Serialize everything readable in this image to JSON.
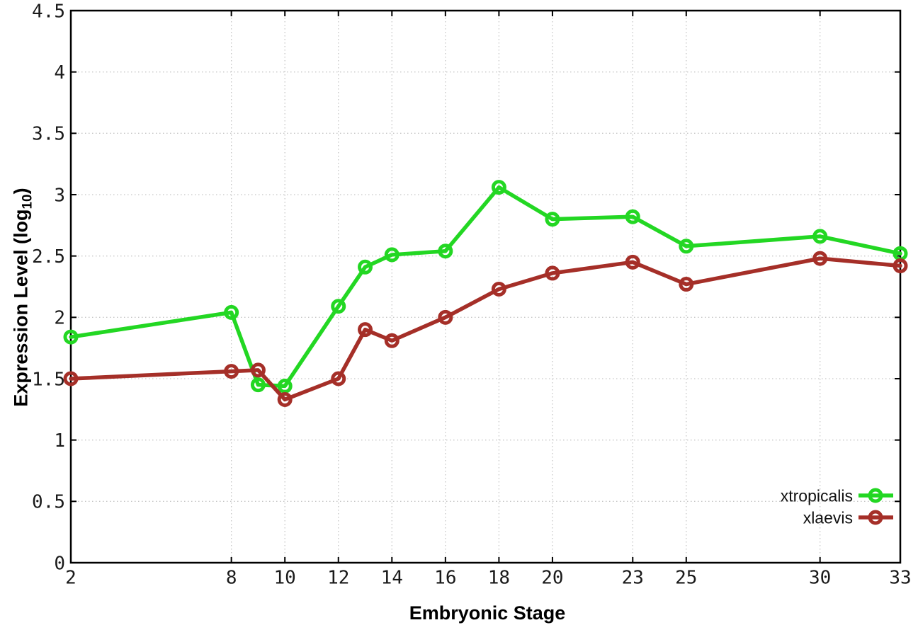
{
  "figure": {
    "background": "#ffffff",
    "border_color": "#000000",
    "grid_color": "#c6c6c6",
    "tick_color": "#000000"
  },
  "x_axis": {
    "title": "Embryonic Stage"
  },
  "y_axis": {
    "title_main": "Expression Level (log",
    "title_sub": "10",
    "title_close": ")"
  },
  "legend": {
    "position": "inside-bottom-right",
    "entries": [
      "xtropicalis",
      "xlaevis"
    ]
  },
  "chart_data": {
    "type": "line",
    "title": "",
    "xlabel": "Embryonic Stage",
    "ylabel": "Expression Level (log10)",
    "x": [
      2,
      8,
      9,
      10,
      12,
      13,
      14,
      16,
      18,
      20,
      23,
      25,
      30,
      33
    ],
    "series": [
      {
        "name": "xtropicalis",
        "color": "#23d723",
        "marker": "open-circle",
        "values": [
          1.84,
          2.04,
          1.45,
          1.44,
          2.09,
          2.41,
          2.51,
          2.54,
          3.06,
          2.8,
          2.82,
          2.58,
          2.66,
          2.52
        ]
      },
      {
        "name": "xlaevis",
        "color": "#a52f28",
        "marker": "open-circle",
        "values": [
          1.5,
          1.56,
          1.57,
          1.33,
          1.5,
          1.9,
          1.81,
          2.0,
          2.23,
          2.36,
          2.45,
          2.27,
          2.48,
          2.42
        ]
      }
    ],
    "xticks": [
      2,
      8,
      10,
      12,
      14,
      16,
      18,
      20,
      23,
      25,
      30,
      33
    ],
    "yticks": [
      0,
      0.5,
      1,
      1.5,
      2,
      2.5,
      3,
      3.5,
      4,
      4.5
    ],
    "xlim": [
      2,
      33
    ],
    "ylim": [
      0,
      4.5
    ],
    "grid": true,
    "legend_position": "inside-bottom-right"
  }
}
